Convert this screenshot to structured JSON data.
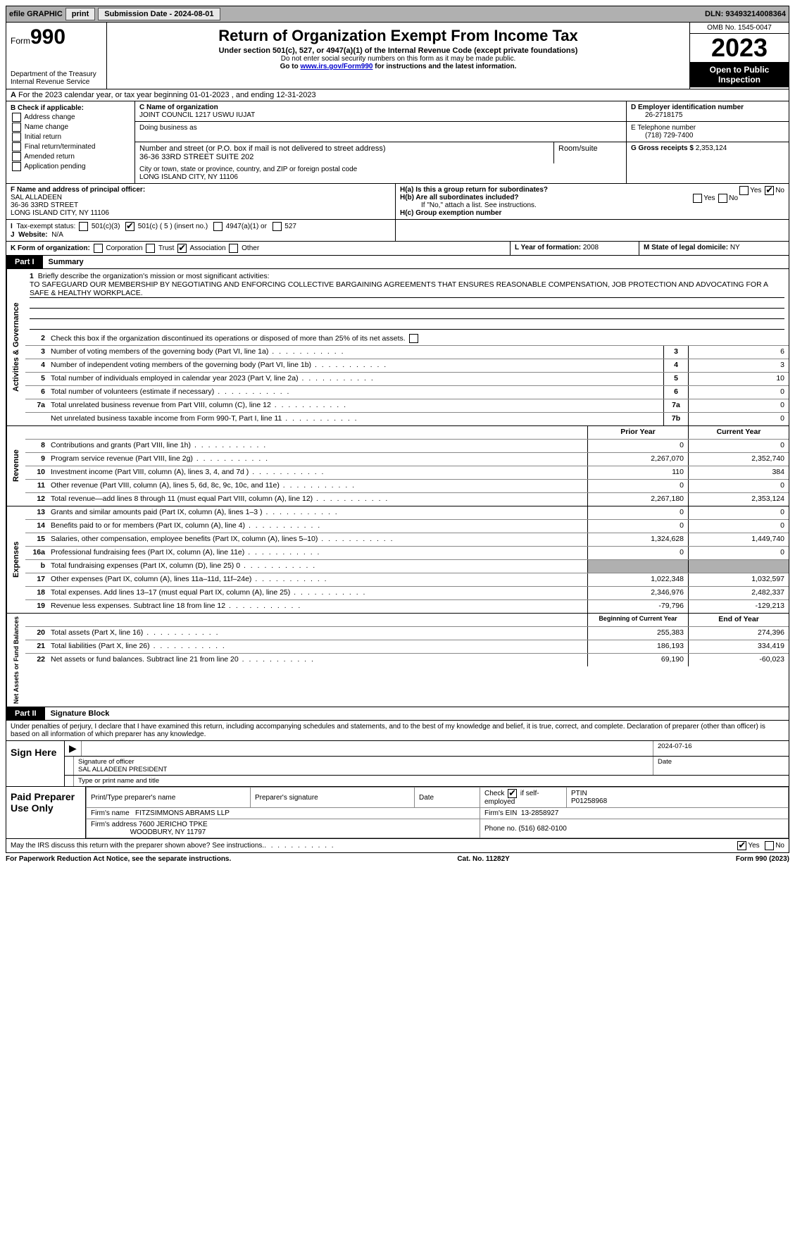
{
  "topbar": {
    "efile_label": "efile GRAPHIC",
    "print_btn": "print",
    "sub_date_label": "Submission Date - 2024-08-01",
    "dln": "DLN: 93493214008364"
  },
  "header": {
    "form_word": "Form",
    "form_num": "990",
    "dept": "Department of the Treasury",
    "irs": "Internal Revenue Service",
    "title": "Return of Organization Exempt From Income Tax",
    "sub1": "Under section 501(c), 527, or 4947(a)(1) of the Internal Revenue Code (except private foundations)",
    "sub2": "Do not enter social security numbers on this form as it may be made public.",
    "sub3_pre": "Go to ",
    "sub3_link": "www.irs.gov/Form990",
    "sub3_post": " for instructions and the latest information.",
    "omb": "OMB No. 1545-0047",
    "year": "2023",
    "insp": "Open to Public Inspection"
  },
  "row_a": "For the 2023 calendar year, or tax year beginning 01-01-2023   , and ending 12-31-2023",
  "col_b": {
    "label": "B Check if applicable:",
    "opts": [
      "Address change",
      "Name change",
      "Initial return",
      "Final return/terminated",
      "Amended return",
      "Application pending"
    ]
  },
  "col_c": {
    "name_label": "C Name of organization",
    "name": "JOINT COUNCIL 1217 USWU IUJAT",
    "dba_label": "Doing business as",
    "addr_label": "Number and street (or P.O. box if mail is not delivered to street address)",
    "room_label": "Room/suite",
    "addr": "36-36 33RD STREET SUITE 202",
    "city_label": "City or town, state or province, country, and ZIP or foreign postal code",
    "city": "LONG ISLAND CITY, NY  11106"
  },
  "col_de": {
    "d_label": "D Employer identification number",
    "d_val": "26-2718175",
    "e_label": "E Telephone number",
    "e_val": "(718) 729-7400",
    "g_label": "G Gross receipts $",
    "g_val": "2,353,124"
  },
  "row_f": {
    "label": "F  Name and address of principal officer:",
    "name": "SAL ALLADEEN",
    "addr1": "36-36 33RD STREET",
    "addr2": "LONG ISLAND CITY, NY  11106"
  },
  "row_h": {
    "ha": "H(a)  Is this a group return for subordinates?",
    "hb": "H(b)  Are all subordinates included?",
    "hb_note": "If \"No,\" attach a list. See instructions.",
    "hc": "H(c)  Group exemption number",
    "yes": "Yes",
    "no": "No"
  },
  "row_i": {
    "label": "Tax-exempt status:",
    "o1": "501(c)(3)",
    "o2": "501(c) ( 5 ) (insert no.)",
    "o3": "4947(a)(1) or",
    "o4": "527"
  },
  "row_j": {
    "label": "Website:",
    "val": "N/A"
  },
  "row_k": {
    "label": "K Form of organization:",
    "opts": [
      "Corporation",
      "Trust",
      "Association",
      "Other"
    ],
    "checked_idx": 2
  },
  "row_l": {
    "label": "L Year of formation:",
    "val": "2008"
  },
  "row_m": {
    "label": "M State of legal domicile:",
    "val": "NY"
  },
  "part1": {
    "num": "Part I",
    "title": "Summary"
  },
  "mission": {
    "label": "Briefly describe the organization's mission or most significant activities:",
    "text": "TO SAFEGUARD OUR MEMBERSHIP BY NEGOTIATING AND ENFORCING COLLECTIVE BARGAINING AGREEMENTS THAT ENSURES REASONABLE COMPENSATION, JOB PROTECTION AND ADVOCATING FOR A SAFE & HEALTHY WORKPLACE."
  },
  "gov": {
    "vlabel": "Activities & Governance",
    "line2": "Check this box       if the organization discontinued its operations or disposed of more than 25% of its net assets.",
    "rows": [
      {
        "n": "3",
        "d": "Number of voting members of the governing body (Part VI, line 1a)",
        "b": "3",
        "v": "6"
      },
      {
        "n": "4",
        "d": "Number of independent voting members of the governing body (Part VI, line 1b)",
        "b": "4",
        "v": "3"
      },
      {
        "n": "5",
        "d": "Total number of individuals employed in calendar year 2023 (Part V, line 2a)",
        "b": "5",
        "v": "10"
      },
      {
        "n": "6",
        "d": "Total number of volunteers (estimate if necessary)",
        "b": "6",
        "v": "0"
      },
      {
        "n": "7a",
        "d": "Total unrelated business revenue from Part VIII, column (C), line 12",
        "b": "7a",
        "v": "0"
      },
      {
        "n": "",
        "d": "Net unrelated business taxable income from Form 990-T, Part I, line 11",
        "b": "7b",
        "v": "0"
      }
    ]
  },
  "rev": {
    "vlabel": "Revenue",
    "hdr_prior": "Prior Year",
    "hdr_curr": "Current Year",
    "rows": [
      {
        "n": "8",
        "d": "Contributions and grants (Part VIII, line 1h)",
        "p": "0",
        "c": "0"
      },
      {
        "n": "9",
        "d": "Program service revenue (Part VIII, line 2g)",
        "p": "2,267,070",
        "c": "2,352,740"
      },
      {
        "n": "10",
        "d": "Investment income (Part VIII, column (A), lines 3, 4, and 7d )",
        "p": "110",
        "c": "384"
      },
      {
        "n": "11",
        "d": "Other revenue (Part VIII, column (A), lines 5, 6d, 8c, 9c, 10c, and 11e)",
        "p": "0",
        "c": "0"
      },
      {
        "n": "12",
        "d": "Total revenue—add lines 8 through 11 (must equal Part VIII, column (A), line 12)",
        "p": "2,267,180",
        "c": "2,353,124"
      }
    ]
  },
  "exp": {
    "vlabel": "Expenses",
    "rows": [
      {
        "n": "13",
        "d": "Grants and similar amounts paid (Part IX, column (A), lines 1–3 )",
        "p": "0",
        "c": "0"
      },
      {
        "n": "14",
        "d": "Benefits paid to or for members (Part IX, column (A), line 4)",
        "p": "0",
        "c": "0"
      },
      {
        "n": "15",
        "d": "Salaries, other compensation, employee benefits (Part IX, column (A), lines 5–10)",
        "p": "1,324,628",
        "c": "1,449,740"
      },
      {
        "n": "16a",
        "d": "Professional fundraising fees (Part IX, column (A), line 11e)",
        "p": "0",
        "c": "0"
      },
      {
        "n": "b",
        "d": "Total fundraising expenses (Part IX, column (D), line 25) 0",
        "p": "",
        "c": "",
        "shaded": true
      },
      {
        "n": "17",
        "d": "Other expenses (Part IX, column (A), lines 11a–11d, 11f–24e)",
        "p": "1,022,348",
        "c": "1,032,597"
      },
      {
        "n": "18",
        "d": "Total expenses. Add lines 13–17 (must equal Part IX, column (A), line 25)",
        "p": "2,346,976",
        "c": "2,482,337"
      },
      {
        "n": "19",
        "d": "Revenue less expenses. Subtract line 18 from line 12",
        "p": "-79,796",
        "c": "-129,213"
      }
    ]
  },
  "net": {
    "vlabel": "Net Assets or Fund Balances",
    "hdr_beg": "Beginning of Current Year",
    "hdr_end": "End of Year",
    "rows": [
      {
        "n": "20",
        "d": "Total assets (Part X, line 16)",
        "p": "255,383",
        "c": "274,396"
      },
      {
        "n": "21",
        "d": "Total liabilities (Part X, line 26)",
        "p": "186,193",
        "c": "334,419"
      },
      {
        "n": "22",
        "d": "Net assets or fund balances. Subtract line 21 from line 20",
        "p": "69,190",
        "c": "-60,023"
      }
    ]
  },
  "part2": {
    "num": "Part II",
    "title": "Signature Block"
  },
  "sig_intro": "Under penalties of perjury, I declare that I have examined this return, including accompanying schedules and statements, and to the best of my knowledge and belief, it is true, correct, and complete. Declaration of preparer (other than officer) is based on all information of which preparer has any knowledge.",
  "sign_here": {
    "label": "Sign Here",
    "sig_label": "Signature of officer",
    "date_label": "Date",
    "date_val": "2024-07-16",
    "name": "SAL ALLADEEN  PRESIDENT",
    "name_label": "Type or print name and title"
  },
  "paid": {
    "label": "Paid Preparer Use Only",
    "h1": "Print/Type preparer's name",
    "h2": "Preparer's signature",
    "h3": "Date",
    "h4_pre": "Check",
    "h4_post": "if self-employed",
    "h5": "PTIN",
    "ptin": "P01258968",
    "firm_label": "Firm's name",
    "firm": "FITZSIMMONS ABRAMS LLP",
    "ein_label": "Firm's EIN",
    "ein": "13-2858927",
    "addr_label": "Firm's address",
    "addr1": "7600 JERICHO TPKE",
    "addr2": "WOODBURY, NY  11797",
    "phone_label": "Phone no.",
    "phone": "(516) 682-0100"
  },
  "discuss": {
    "q": "May the IRS discuss this return with the preparer shown above? See instructions.",
    "yes": "Yes",
    "no": "No"
  },
  "footer": {
    "left": "For Paperwork Reduction Act Notice, see the separate instructions.",
    "mid": "Cat. No. 11282Y",
    "right": "Form 990 (2023)"
  }
}
